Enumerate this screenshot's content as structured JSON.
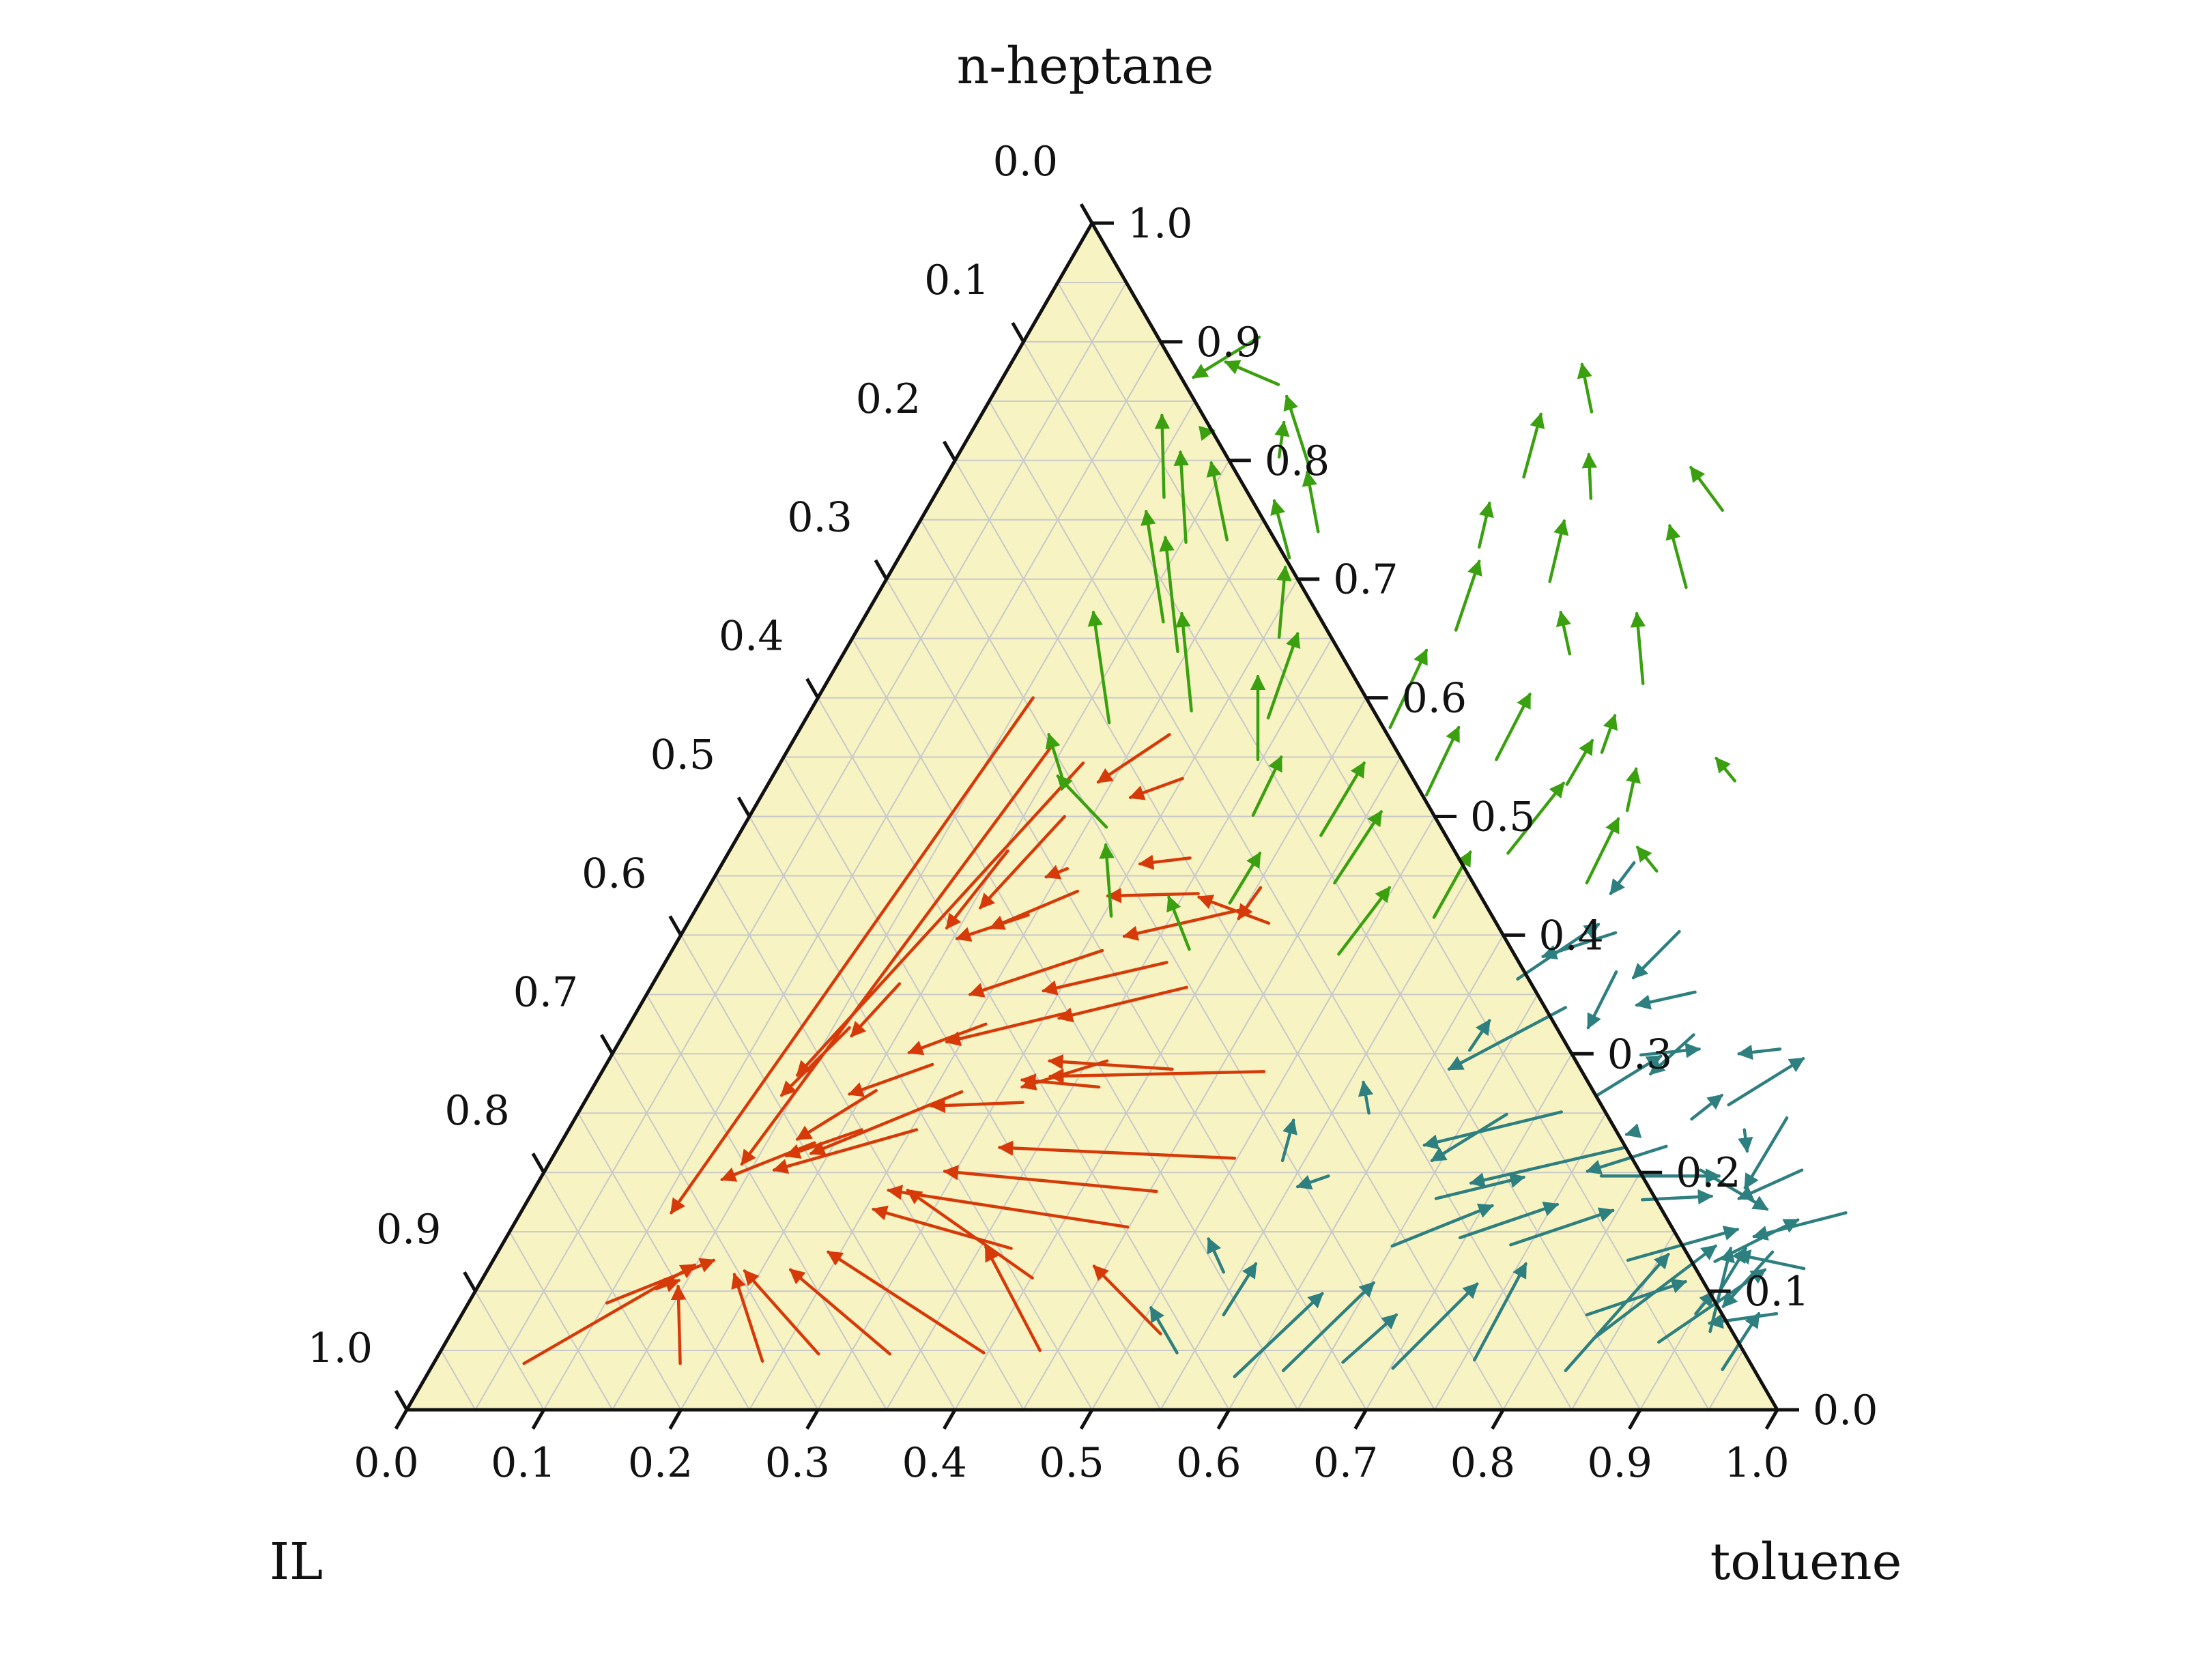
{
  "chart_data": {
    "type": "ternary_quiver",
    "vertices": {
      "top": "n-heptane",
      "left": "IL",
      "right": "toluene"
    },
    "scales": {
      "bottom_ticks": [
        "0.0",
        "0.1",
        "0.2",
        "0.3",
        "0.4",
        "0.5",
        "0.6",
        "0.7",
        "0.8",
        "0.9",
        "1.0"
      ],
      "left_ticks": [
        "0.0",
        "0.1",
        "0.2",
        "0.3",
        "0.4",
        "0.5",
        "0.6",
        "0.7",
        "0.8",
        "0.9",
        "1.0"
      ],
      "right_ticks": [
        "1.0",
        "0.9",
        "0.8",
        "0.7",
        "0.6",
        "0.5",
        "0.4",
        "0.3",
        "0.2",
        "0.1",
        "0.0"
      ]
    },
    "grid": true,
    "background_color": "#f7f3c2",
    "series": [
      {
        "color": "#d63a09",
        "region": "IL-rich",
        "arrows": [
          [
            0.066,
            0.039,
            0.149,
            0.122
          ],
          [
            0.18,
            0.039,
            0.146,
            0.104
          ],
          [
            0.101,
            0.09,
            0.161,
            0.126
          ],
          [
            0.131,
            0.102,
            0.144,
            0.109
          ],
          [
            0.239,
            0.041,
            0.182,
            0.114
          ],
          [
            0.277,
            0.047,
            0.188,
            0.117
          ],
          [
            0.329,
            0.047,
            0.221,
            0.118
          ],
          [
            0.397,
            0.048,
            0.241,
            0.133
          ],
          [
            0.437,
            0.05,
            0.354,
            0.137
          ],
          [
            0.401,
            0.111,
            0.273,
            0.185
          ],
          [
            0.518,
            0.064,
            0.441,
            0.121
          ],
          [
            0.373,
            0.136,
            0.256,
            0.169
          ],
          [
            0.449,
            0.154,
            0.259,
            0.185
          ],
          [
            0.455,
            0.184,
            0.292,
            0.201
          ],
          [
            0.498,
            0.212,
            0.322,
            0.221
          ],
          [
            0.483,
            0.285,
            0.329,
            0.281
          ],
          [
            0.415,
            0.287,
            0.322,
            0.294
          ],
          [
            0.369,
            0.272,
            0.31,
            0.278
          ],
          [
            0.32,
            0.259,
            0.255,
            0.256
          ],
          [
            0.271,
            0.268,
            0.187,
            0.216
          ],
          [
            0.254,
            0.236,
            0.167,
            0.202
          ],
          [
            0.214,
            0.236,
            0.17,
            0.214
          ],
          [
            0.185,
            0.225,
            0.133,
            0.194
          ],
          [
            0.208,
            0.269,
            0.171,
            0.228
          ],
          [
            0.238,
            0.291,
            0.19,
            0.266
          ],
          [
            0.26,
            0.325,
            0.216,
            0.301
          ],
          [
            0.313,
            0.334,
            0.239,
            0.31
          ],
          [
            0.366,
            0.377,
            0.288,
            0.353
          ],
          [
            0.424,
            0.41,
            0.362,
            0.432
          ],
          [
            0.36,
            0.435,
            0.295,
            0.433
          ],
          [
            0.314,
            0.387,
            0.236,
            0.35
          ],
          [
            0.245,
            0.417,
            0.203,
            0.397
          ],
          [
            0.254,
            0.456,
            0.242,
            0.449
          ],
          [
            0.271,
            0.437,
            0.223,
            0.406
          ],
          [
            0.18,
            0.359,
            0.167,
            0.315
          ],
          [
            0.162,
            0.322,
            0.141,
            0.265
          ],
          [
            0.203,
            0.471,
            0.191,
            0.406
          ],
          [
            0.23,
            0.5,
            0.207,
            0.423
          ],
          [
            0.221,
            0.545,
            0.144,
            0.282
          ],
          [
            0.191,
            0.56,
            0.141,
            0.207
          ],
          [
            0.157,
            0.6,
            0.11,
            0.166
          ],
          [
            0.272,
            0.569,
            0.24,
            0.529
          ],
          [
            0.3,
            0.532,
            0.27,
            0.516
          ],
          [
            0.403,
            0.44,
            0.4,
            0.414
          ],
          [
            0.4,
            0.422,
            0.324,
            0.399
          ],
          [
            0.339,
            0.465,
            0.305,
            0.46
          ],
          [
            0.391,
            0.356,
            0.311,
            0.33
          ],
          [
            0.364,
            0.294,
            0.313,
            0.272
          ]
        ]
      },
      {
        "color": "#3aa010",
        "region": "n-heptane-rich",
        "arrows": [
          [
            0.17,
            0.904,
            0.139,
            0.87
          ],
          [
            0.172,
            0.824,
            0.176,
            0.825
          ],
          [
            0.168,
            0.769,
            0.132,
            0.838
          ],
          [
            0.203,
            0.731,
            0.161,
            0.807
          ],
          [
            0.22,
            0.664,
            0.161,
            0.757
          ],
          [
            0.223,
            0.579,
            0.165,
            0.672
          ],
          [
            0.217,
            0.526,
            0.184,
            0.569
          ],
          [
            0.265,
            0.491,
            0.208,
            0.534
          ],
          [
            0.306,
            0.416,
            0.272,
            0.476
          ],
          [
            0.377,
            0.388,
            0.34,
            0.432
          ],
          [
            0.347,
            0.548,
            0.312,
            0.618
          ],
          [
            0.278,
            0.589,
            0.23,
            0.671
          ],
          [
            0.243,
            0.639,
            0.186,
            0.735
          ],
          [
            0.232,
            0.733,
            0.188,
            0.798
          ],
          [
            0.204,
            0.864,
            0.156,
            0.883
          ],
          [
            0.235,
            0.803,
            0.224,
            0.832
          ],
          [
            0.285,
            0.718,
            0.25,
            0.766
          ],
          [
            0.264,
            0.791,
            0.215,
            0.854
          ],
          [
            0.295,
            0.74,
            0.262,
            0.79
          ],
          [
            0.311,
            0.651,
            0.286,
            0.71
          ],
          [
            0.337,
            0.583,
            0.323,
            0.654
          ],
          [
            0.367,
            0.501,
            0.363,
            0.55
          ],
          [
            0.387,
            0.427,
            0.388,
            0.469
          ],
          [
            0.425,
            0.484,
            0.426,
            0.545
          ],
          [
            0.43,
            0.575,
            0.424,
            0.64
          ],
          [
            0.437,
            0.657,
            0.425,
            0.715
          ],
          [
            0.419,
            0.727,
            0.408,
            0.764
          ],
          [
            0.422,
            0.786,
            0.408,
            0.839
          ],
          [
            0.444,
            0.841,
            0.417,
            0.881
          ],
          [
            0.48,
            0.768,
            0.46,
            0.805
          ],
          [
            0.485,
            0.698,
            0.47,
            0.749
          ],
          [
            0.53,
            0.637,
            0.506,
            0.672
          ],
          [
            0.521,
            0.548,
            0.518,
            0.603
          ],
          [
            0.485,
            0.518,
            0.48,
            0.575
          ],
          [
            0.455,
            0.444,
            0.459,
            0.504
          ],
          [
            0.488,
            0.384,
            0.497,
            0.44
          ],
          [
            0.542,
            0.415,
            0.541,
            0.47
          ],
          [
            0.569,
            0.469,
            0.58,
            0.528
          ],
          [
            0.583,
            0.527,
            0.583,
            0.564
          ],
          [
            0.596,
            0.612,
            0.562,
            0.671
          ],
          [
            0.587,
            0.693,
            0.549,
            0.745
          ],
          [
            0.581,
            0.758,
            0.54,
            0.794
          ],
          [
            0.595,
            0.554,
            0.589,
            0.585
          ],
          [
            0.639,
            0.444,
            0.635,
            0.498
          ],
          [
            0.638,
            0.505,
            0.627,
            0.54
          ],
          [
            0.685,
            0.454,
            0.661,
            0.474
          ],
          [
            0.704,
            0.53,
            0.681,
            0.549
          ]
        ]
      },
      {
        "color": "#2e7f7f",
        "region": "toluene-rich",
        "arrows": [
          [
            0.538,
            0.048,
            0.5,
            0.086
          ],
          [
            0.556,
            0.08,
            0.558,
            0.123
          ],
          [
            0.538,
            0.116,
            0.513,
            0.144
          ],
          [
            0.534,
            0.21,
            0.525,
            0.244
          ],
          [
            0.574,
            0.197,
            0.556,
            0.188
          ],
          [
            0.577,
            0.25,
            0.56,
            0.276
          ],
          [
            0.624,
            0.303,
            0.626,
            0.328
          ],
          [
            0.676,
            0.339,
            0.617,
            0.287
          ],
          [
            0.629,
            0.363,
            0.665,
            0.409
          ],
          [
            0.665,
            0.461,
            0.661,
            0.435
          ],
          [
            0.681,
            0.402,
            0.638,
            0.382
          ],
          [
            0.698,
            0.369,
            0.701,
            0.322
          ],
          [
            0.727,
            0.403,
            0.713,
            0.364
          ],
          [
            0.764,
            0.352,
            0.727,
            0.341
          ],
          [
            0.781,
            0.316,
            0.766,
            0.283
          ],
          [
            0.779,
            0.234,
            0.774,
            0.232
          ],
          [
            0.736,
            0.265,
            0.766,
            0.298
          ],
          [
            0.751,
            0.299,
            0.791,
            0.304
          ],
          [
            0.85,
            0.304,
            0.822,
            0.3
          ],
          [
            0.836,
            0.257,
            0.871,
            0.296
          ],
          [
            0.815,
            0.245,
            0.827,
            0.265
          ],
          [
            0.808,
            0.222,
            0.761,
            0.201
          ],
          [
            0.778,
            0.221,
            0.681,
            0.191
          ],
          [
            0.717,
            0.251,
            0.631,
            0.223
          ],
          [
            0.678,
            0.249,
            0.643,
            0.21
          ],
          [
            0.662,
            0.178,
            0.717,
            0.196
          ],
          [
            0.65,
            0.138,
            0.706,
            0.172
          ],
          [
            0.696,
            0.145,
            0.753,
            0.173
          ],
          [
            0.736,
            0.139,
            0.796,
            0.168
          ],
          [
            0.773,
            0.197,
            0.859,
            0.197
          ],
          [
            0.813,
            0.177,
            0.862,
            0.18
          ],
          [
            0.828,
            0.126,
            0.895,
            0.152
          ],
          [
            0.836,
            0.06,
            0.886,
            0.138
          ],
          [
            0.829,
            0.033,
            0.855,
            0.131
          ],
          [
            0.821,
            0.08,
            0.879,
            0.108
          ],
          [
            0.885,
            0.057,
            0.932,
            0.118
          ],
          [
            0.9,
            0.081,
            0.904,
            0.099
          ],
          [
            0.918,
            0.066,
            0.898,
            0.136
          ],
          [
            0.93,
            0.133,
            0.917,
            0.087
          ],
          [
            0.908,
            0.101,
            0.909,
            0.136
          ],
          [
            0.96,
            0.119,
            0.905,
            0.131
          ],
          [
            0.943,
            0.034,
            0.946,
            0.081
          ],
          [
            0.959,
            0.081,
            0.914,
            0.073
          ],
          [
            0.892,
            0.125,
            0.935,
            0.16
          ],
          [
            0.843,
            0.202,
            0.908,
            0.169
          ],
          [
            0.858,
            0.236,
            0.869,
            0.218
          ],
          [
            0.884,
            0.246,
            0.883,
            0.187
          ],
          [
            0.917,
            0.202,
            0.883,
            0.178
          ],
          [
            0.967,
            0.166,
            0.91,
            0.146
          ],
          [
            0.758,
            0.042,
            0.755,
            0.123
          ],
          [
            0.702,
            0.035,
            0.728,
            0.106
          ],
          [
            0.663,
            0.04,
            0.682,
            0.08
          ],
          [
            0.623,
            0.033,
            0.652,
            0.107
          ],
          [
            0.59,
            0.028,
            0.619,
            0.098
          ]
        ]
      }
    ]
  }
}
